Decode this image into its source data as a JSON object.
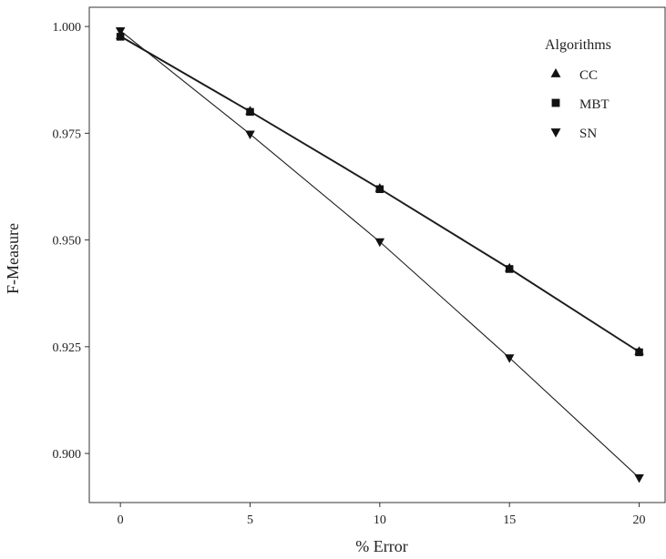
{
  "chart_data": {
    "type": "line",
    "title": "",
    "xlabel": "% Error",
    "ylabel": "F-Measure",
    "x": [
      0,
      5,
      10,
      15,
      20
    ],
    "x_ticks": [
      "0",
      "5",
      "10",
      "15",
      "20"
    ],
    "y_ticks": [
      "0.900",
      "0.925",
      "0.950",
      "0.975",
      "1.000"
    ],
    "xlim": [
      -1.2,
      21.0
    ],
    "ylim": [
      0.8885,
      1.0045
    ],
    "grid": false,
    "legend": {
      "title": "Algorithms",
      "position": "top-right",
      "items": [
        {
          "name": "CC",
          "marker": "triangle-up"
        },
        {
          "name": "MBT",
          "marker": "square"
        },
        {
          "name": "SN",
          "marker": "triangle-down"
        }
      ]
    },
    "series": [
      {
        "name": "CC",
        "marker": "triangle-up",
        "values": [
          0.9978,
          0.9802,
          0.9621,
          0.9434,
          0.9239
        ]
      },
      {
        "name": "MBT",
        "marker": "square",
        "values": [
          0.9976,
          0.98,
          0.9619,
          0.9432,
          0.9237
        ]
      },
      {
        "name": "SN",
        "marker": "triangle-down",
        "values": [
          0.999,
          0.9748,
          0.9496,
          0.9224,
          0.8943
        ]
      }
    ],
    "colors": {
      "line": "#1a1a1a",
      "marker": "#111111",
      "axis": "#333333"
    }
  }
}
